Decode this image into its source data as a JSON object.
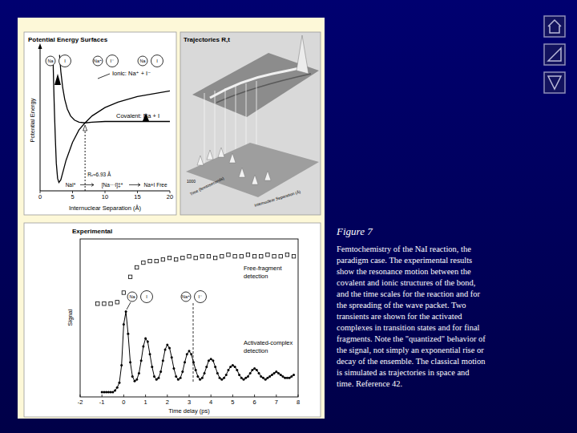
{
  "chart_data": [
    {
      "type": "line",
      "title": "Potential Energy Surfaces",
      "x_label": "Internuclear Separation (Å)",
      "y_label": "Potential Energy",
      "xlim": [
        0,
        20
      ],
      "xticks": [
        0,
        5,
        10,
        15,
        20
      ],
      "ylim": [
        0,
        10
      ],
      "tick_labels": "x",
      "series": [
        {
          "name": "Ionic: Na⁺ + I⁻",
          "color": "#000000",
          "line_style": "solid",
          "x": [
            2.0,
            2.1,
            2.2,
            2.35,
            2.5,
            2.7,
            2.9,
            3.2,
            3.6,
            4,
            5,
            6,
            6.93,
            8,
            10,
            12,
            15,
            20
          ],
          "values": [
            9.5,
            7.6,
            5.9,
            3.8,
            2.0,
            0.9,
            0.6,
            0.8,
            1.5,
            2.2,
            3.5,
            4.4,
            4.9,
            5.4,
            6.0,
            6.4,
            6.8,
            7.2
          ]
        },
        {
          "name": "Covalent: Na + I",
          "color": "#000000",
          "line_style": "solid",
          "x": [
            3.0,
            3.2,
            3.5,
            3.8,
            4.2,
            4.7,
            5.3,
            6,
            6.93,
            8,
            10,
            12,
            15,
            20
          ],
          "values": [
            9.8,
            8.6,
            7.4,
            6.6,
            5.9,
            5.4,
            5.1,
            4.95,
            4.9,
            4.95,
            5.0,
            5.0,
            5.0,
            5.0
          ]
        }
      ],
      "annotations": [
        {
          "text": "Rₓ≈6.93 Å",
          "x": 6.93
        },
        {
          "text": "NaI*"
        },
        {
          "text": "[Na···I]‡*"
        },
        {
          "text": "Na+I Free"
        }
      ]
    },
    {
      "type": "line",
      "title": "Experimental",
      "x_label": "Time delay (ps)",
      "y_label": "Signal",
      "xlim": [
        -2,
        8
      ],
      "xticks": [
        -2,
        -1,
        0,
        1,
        2,
        3,
        4,
        5,
        6,
        7,
        8
      ],
      "ylim": [
        0,
        10
      ],
      "tick_labels": "x",
      "series": [
        {
          "name": "Free-fragment detection",
          "type": "scatter",
          "marker": "square",
          "color": "#000000",
          "x": [
            -1.2,
            -0.9,
            -0.6,
            -0.3,
            0,
            0.3,
            0.6,
            0.9,
            1.2,
            1.5,
            1.8,
            2.1,
            2.4,
            2.7,
            3.0,
            3.3,
            3.6,
            3.9,
            4.2,
            4.5,
            4.8,
            5.1,
            5.4,
            5.7,
            6.0,
            6.3,
            6.6,
            6.9,
            7.2,
            7.5,
            7.8
          ],
          "values": [
            5.9,
            5.9,
            5.9,
            6.0,
            6.6,
            7.6,
            8.2,
            8.5,
            8.6,
            8.6,
            8.7,
            8.8,
            8.7,
            8.8,
            8.9,
            8.8,
            8.9,
            8.9,
            8.8,
            8.9,
            9.0,
            8.9,
            8.9,
            9.0,
            8.9,
            8.9,
            9.0,
            8.9,
            8.9,
            9.0,
            8.9
          ]
        },
        {
          "name": "Activated-complex detection",
          "type": "line",
          "marker": "circle",
          "color": "#000000",
          "x": [
            -1.0,
            -0.9,
            -0.8,
            -0.7,
            -0.6,
            -0.5,
            -0.4,
            -0.3,
            -0.2,
            -0.1,
            0.0,
            0.1,
            0.2,
            0.3,
            0.4,
            0.5,
            0.6,
            0.7,
            0.8,
            0.9,
            1.0,
            1.1,
            1.2,
            1.3,
            1.4,
            1.5,
            1.6,
            1.7,
            1.8,
            1.9,
            2.0,
            2.1,
            2.2,
            2.3,
            2.4,
            2.5,
            2.6,
            2.7,
            2.8,
            2.9,
            3.0,
            3.1,
            3.2,
            3.3,
            3.4,
            3.5,
            3.6,
            3.7,
            3.8,
            3.9,
            4.0,
            4.1,
            4.2,
            4.3,
            4.4,
            4.5,
            4.6,
            4.7,
            4.8,
            4.9,
            5.0,
            5.1,
            5.2,
            5.3,
            5.4,
            5.5,
            5.6,
            5.7,
            5.8,
            5.9,
            6.0,
            6.1,
            6.2,
            6.3,
            6.4,
            6.5,
            6.6,
            6.7,
            6.8,
            6.9,
            7.0,
            7.1,
            7.2,
            7.3,
            7.4,
            7.5,
            7.6,
            7.7,
            7.8
          ],
          "values": [
            0.3,
            0.3,
            0.3,
            0.3,
            0.3,
            0.3,
            0.4,
            0.6,
            0.9,
            2.0,
            4.6,
            5.4,
            4.0,
            2.2,
            1.3,
            1.0,
            1.1,
            1.5,
            2.3,
            3.2,
            3.7,
            3.5,
            2.7,
            1.9,
            1.3,
            1.1,
            1.2,
            1.6,
            2.3,
            3.0,
            3.3,
            3.1,
            2.5,
            1.8,
            1.3,
            1.1,
            1.2,
            1.6,
            2.2,
            2.7,
            2.9,
            2.7,
            2.2,
            1.7,
            1.3,
            1.1,
            1.2,
            1.5,
            1.9,
            2.3,
            2.4,
            2.3,
            1.9,
            1.5,
            1.2,
            1.1,
            1.2,
            1.4,
            1.7,
            1.9,
            2.0,
            1.9,
            1.7,
            1.4,
            1.2,
            1.1,
            1.2,
            1.3,
            1.5,
            1.7,
            1.8,
            1.7,
            1.5,
            1.3,
            1.2,
            1.1,
            1.2,
            1.3,
            1.4,
            1.5,
            1.6,
            1.5,
            1.4,
            1.3,
            1.2,
            1.2,
            1.2,
            1.3,
            1.4
          ]
        }
      ]
    }
  ],
  "figure": {
    "label": "Figure 7",
    "caption": "Femtochemistry of the NaI reaction, the paradigm case. The experimental results show the resonance motion between the covalent and ionic structures of the bond, and the time scales for the reaction and for the spreading of the wave packet. Two transients are shown for the activated complexes in transition states and for final fragments. Note the \"quantized\" behavior of the signal, not simply an exponential rise or decay of the ensemble. The classical motion is simulated as trajectories in space and time. Reference 42.",
    "pes_atoms": [
      [
        "Na",
        "I"
      ],
      [
        "Na⁺",
        "I⁻"
      ],
      [
        "Na",
        "I"
      ]
    ],
    "exp_atoms": [
      [
        "Na",
        "I"
      ],
      [
        "Na⁺",
        "I⁻"
      ]
    ],
    "trajectories": {
      "title": "Trajectories R,t",
      "labels": [
        "1000",
        "Time (femtoseconds)",
        "Internuclear Separation (Å)"
      ]
    }
  }
}
